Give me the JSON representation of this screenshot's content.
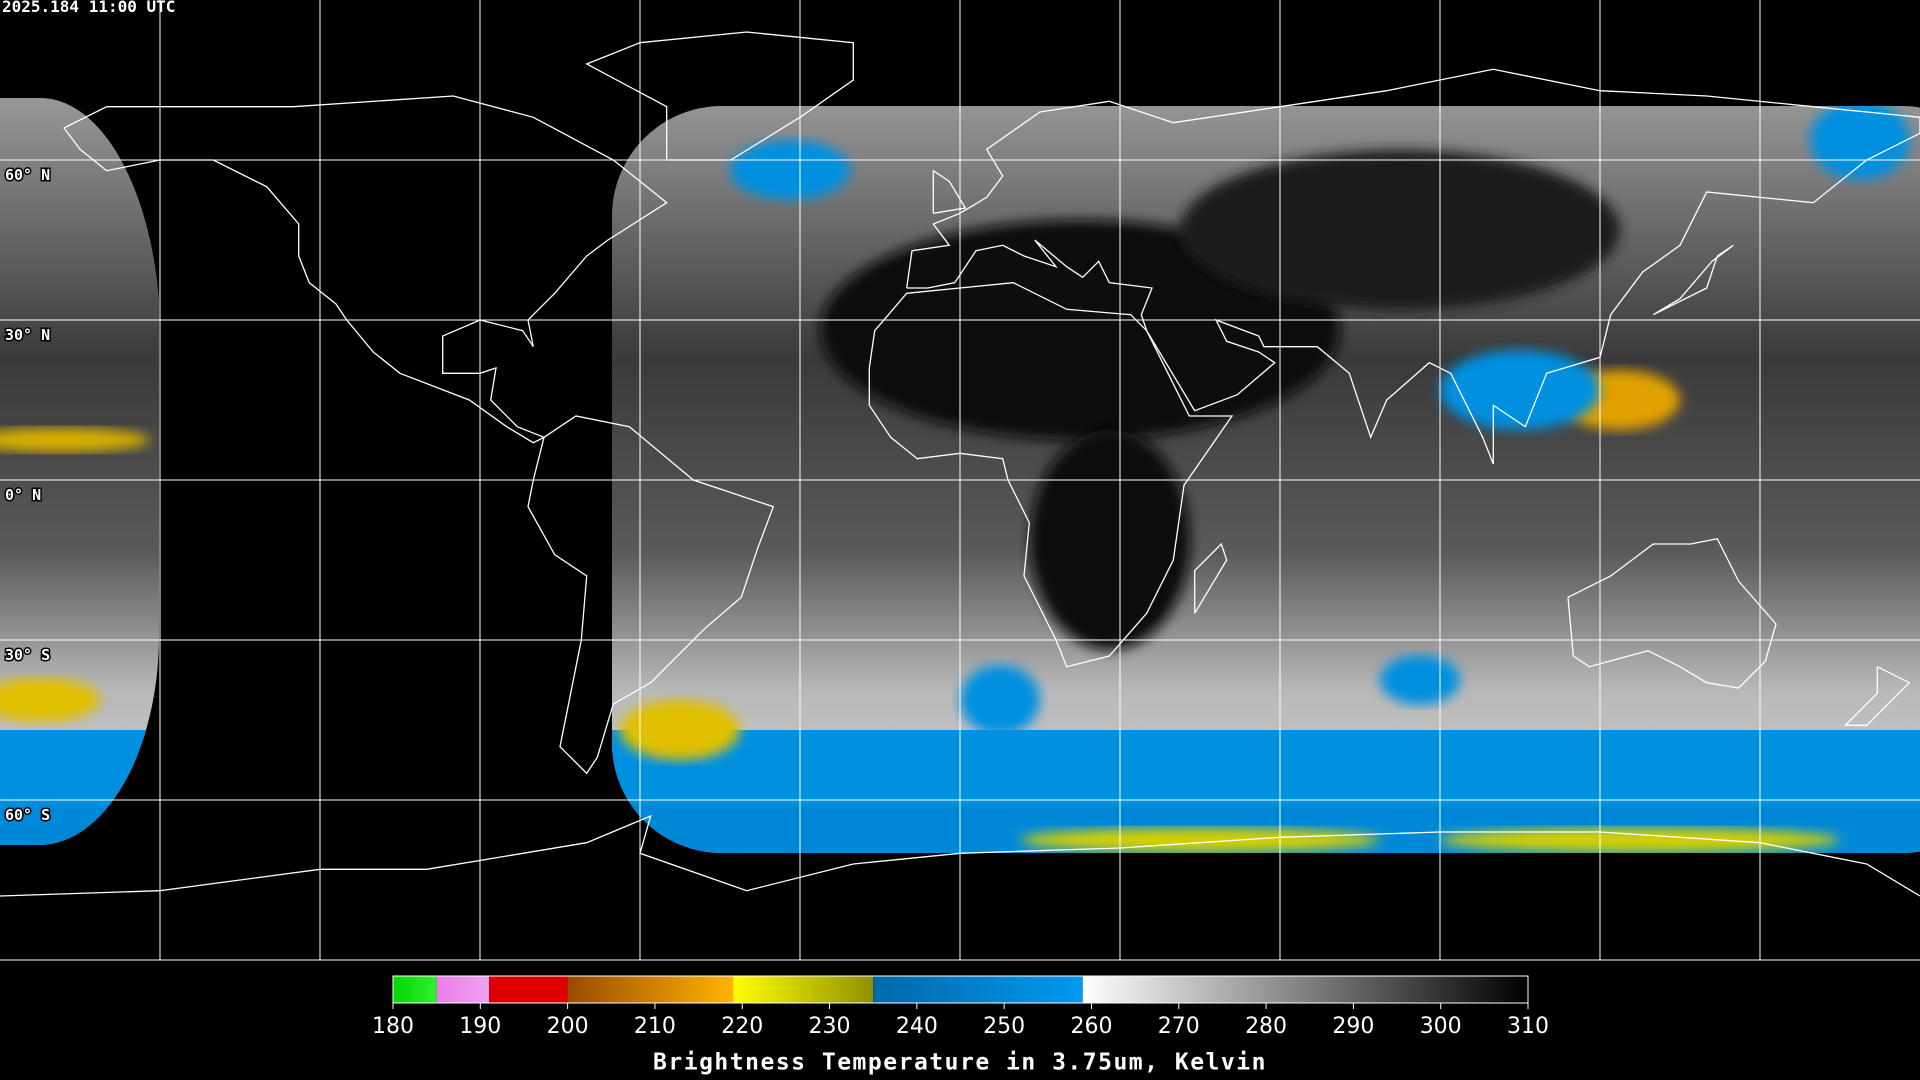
{
  "header": {
    "title": "2025.184 11:00 UTC"
  },
  "map": {
    "lat_labels": [
      "60° N",
      "30° N",
      "0° N",
      "30° S",
      "60° S"
    ]
  },
  "colorbar": {
    "title": "Brightness Temperature in 3.75um, Kelvin",
    "lim": [
      180,
      310
    ],
    "ticks": [
      180,
      190,
      200,
      210,
      220,
      230,
      240,
      250,
      260,
      270,
      280,
      290,
      300,
      310
    ],
    "segments": [
      {
        "from": 180,
        "to": 185,
        "colors": [
          "#00d800",
          "#33ee33"
        ]
      },
      {
        "from": 185,
        "to": 191,
        "colors": [
          "#e880e8",
          "#f0a0f0"
        ]
      },
      {
        "from": 191,
        "to": 200,
        "colors": [
          "#e00000",
          "#e00000"
        ]
      },
      {
        "from": 200,
        "to": 219,
        "colors": [
          "#9a4a00",
          "#ffb400"
        ]
      },
      {
        "from": 219,
        "to": 235,
        "colors": [
          "#ffff00",
          "#909000"
        ]
      },
      {
        "from": 235,
        "to": 259,
        "colors": [
          "#0068a8",
          "#0099f0"
        ]
      },
      {
        "from": 259,
        "to": 310,
        "colors": [
          "#ffffff",
          "#000000"
        ]
      }
    ]
  }
}
